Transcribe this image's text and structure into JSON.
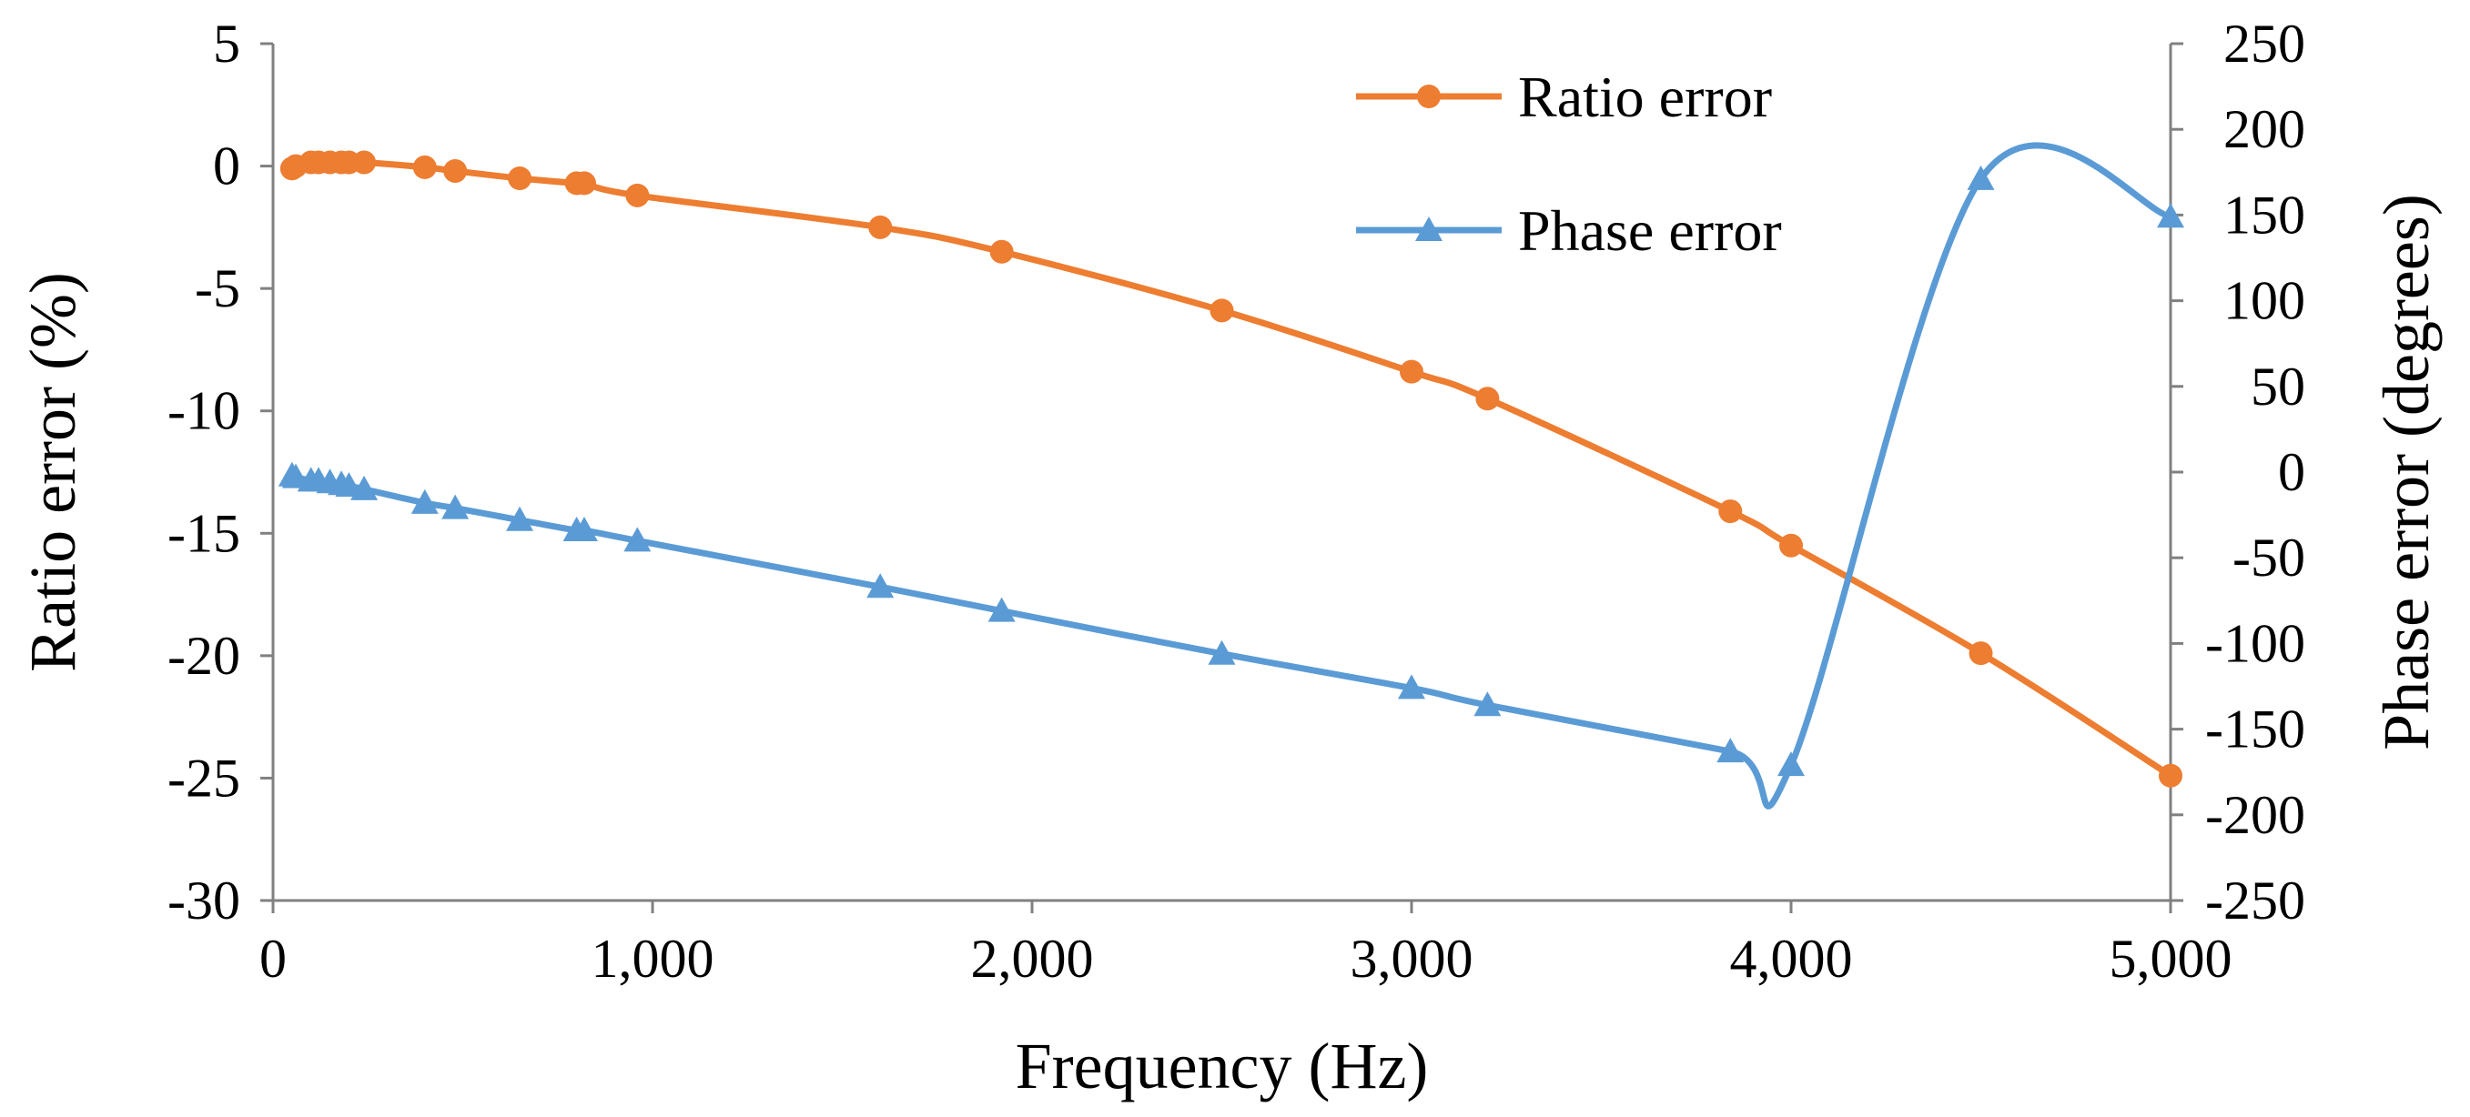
{
  "chart_data": {
    "type": "line",
    "xlabel": "Frequency (Hz)",
    "ylabel": "Ratio error (%)",
    "y2label": "Phase error (degrees)",
    "xlim": [
      0,
      5000
    ],
    "ylim": [
      -30,
      5
    ],
    "y2lim": [
      -250,
      250
    ],
    "grid": false,
    "legend_position": "top-right",
    "x_ticks": [
      "0",
      "1,000",
      "2,000",
      "3,000",
      "4,000",
      "5,000"
    ],
    "x_tick_values": [
      0,
      1000,
      2000,
      3000,
      4000,
      5000
    ],
    "y_ticks": [
      "5",
      "0",
      "-5",
      "-10",
      "-15",
      "-20",
      "-25",
      "-30"
    ],
    "y_tick_values": [
      5,
      0,
      -5,
      -10,
      -15,
      -20,
      -25,
      -30
    ],
    "y2_ticks": [
      "250",
      "200",
      "150",
      "100",
      "50",
      "0",
      "-50",
      "-100",
      "-150",
      "-200",
      "-250"
    ],
    "y2_tick_values": [
      250,
      200,
      150,
      100,
      50,
      0,
      -50,
      -100,
      -150,
      -200,
      -250
    ],
    "series": [
      {
        "name": "Ratio error",
        "axis": "left",
        "color": "#ED7D31",
        "marker": "circle",
        "x": [
          50,
          60,
          100,
          120,
          150,
          180,
          200,
          240,
          400,
          480,
          650,
          800,
          820,
          960,
          1600,
          1920,
          2500,
          3000,
          3200,
          3840,
          4000,
          4500,
          5000
        ],
        "y": [
          -0.1,
          0.0,
          0.15,
          0.15,
          0.15,
          0.15,
          0.15,
          0.15,
          -0.05,
          -0.2,
          -0.5,
          -0.7,
          -0.7,
          -1.2,
          -2.5,
          -3.5,
          -5.9,
          -8.4,
          -9.5,
          -14.1,
          -15.5,
          -19.9,
          -24.9
        ]
      },
      {
        "name": "Phase error",
        "axis": "right",
        "color": "#5B9BD5",
        "marker": "triangle",
        "x": [
          50,
          60,
          100,
          120,
          150,
          180,
          200,
          240,
          400,
          480,
          650,
          800,
          820,
          960,
          1600,
          1920,
          2500,
          3000,
          3200,
          3840,
          4000,
          4500,
          5000
        ],
        "y": [
          -2,
          -3,
          -5,
          -5,
          -6,
          -7,
          -8,
          -10,
          -18,
          -21,
          -28,
          -34,
          -34,
          -40,
          -67,
          -81,
          -106,
          -126,
          -136,
          -163,
          -171,
          171,
          149
        ]
      }
    ]
  }
}
